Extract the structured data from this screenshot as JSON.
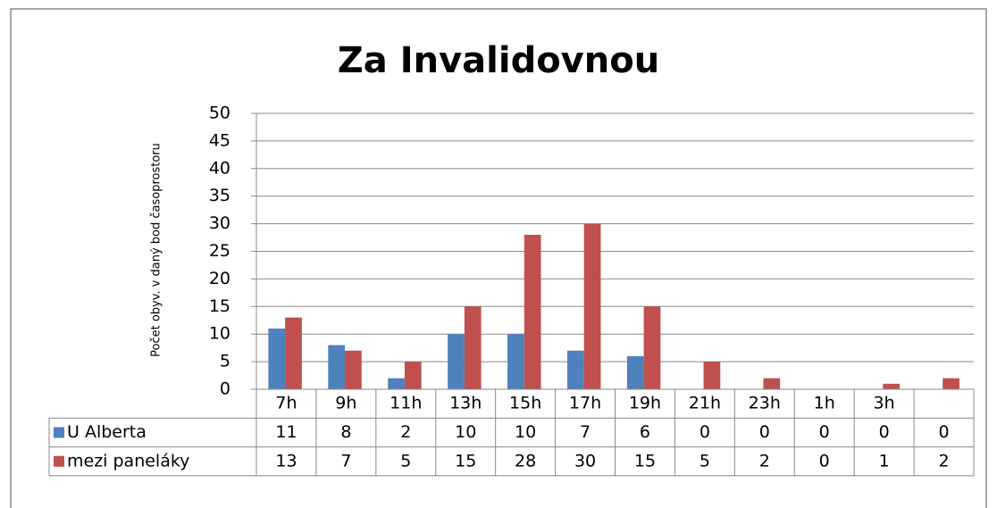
{
  "chart_data": {
    "type": "bar",
    "title": "Za Invalidovnou",
    "y_label": "Počet obyv. v daný bod časoprostoru",
    "categories": [
      "7h",
      "9h",
      "11h",
      "13h",
      "15h",
      "17h",
      "19h",
      "21h",
      "23h",
      "1h",
      "3h",
      null
    ],
    "series": [
      {
        "name": "U Alberta",
        "color": "#4f81bd",
        "values": [
          11,
          8,
          2,
          10,
          10,
          7,
          6,
          0,
          0,
          0,
          0,
          0
        ]
      },
      {
        "name": "mezi paneláky",
        "color": "#c0504d",
        "values": [
          13,
          7,
          5,
          15,
          28,
          30,
          15,
          5,
          2,
          0,
          1,
          2
        ]
      }
    ],
    "ylim": [
      0,
      50
    ],
    "yticks": [
      0,
      5,
      10,
      15,
      20,
      25,
      30,
      35,
      40,
      45,
      50
    ],
    "grid": true
  }
}
